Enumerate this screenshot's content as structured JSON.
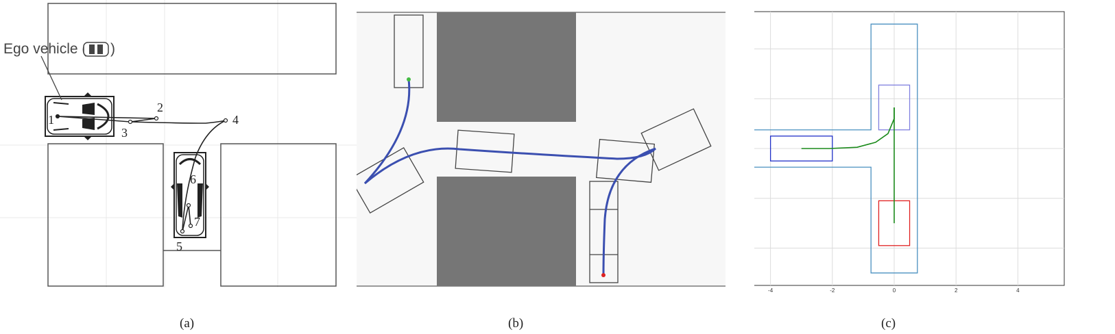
{
  "panel_a": {
    "caption": "(a)",
    "ego_label": "Ego vehicle (",
    "ego_label_close": ")",
    "waypoints": [
      "1",
      "2",
      "3",
      "4",
      "5",
      "6",
      "7"
    ]
  },
  "panel_b": {
    "caption": "(b)"
  },
  "panel_c": {
    "caption": "(c)",
    "chart_data": {
      "type": "scatter",
      "title": "",
      "xlabel": "",
      "ylabel": "",
      "xlim": [
        -5.3,
        5.5
      ],
      "ylim": [
        -5.5,
        5.5
      ],
      "x_ticks": [
        "-4",
        "-2",
        "0",
        "2",
        "4"
      ],
      "y_ticks": [
        "4",
        "2",
        "0",
        "-2",
        "-4"
      ],
      "grid": true,
      "colors": {
        "boundary": "#4a90c0",
        "start_box": "#2030c8",
        "goal_box": "#e02020",
        "mid_box": "#8080e0",
        "path": "#1a8a1a"
      },
      "boundary_polygon": [
        [
          -0.75,
          5
        ],
        [
          0.75,
          5
        ],
        [
          0.75,
          -5
        ],
        [
          -0.75,
          -5
        ],
        [
          -0.75,
          -0.75
        ],
        [
          -5,
          -0.75
        ],
        [
          -5,
          0.75
        ],
        [
          -0.75,
          0.75
        ]
      ],
      "start_box": {
        "x": [
          -4,
          -2
        ],
        "y": [
          -0.5,
          0.5
        ]
      },
      "mid_box": {
        "x": [
          -0.5,
          0.5
        ],
        "y": [
          0.75,
          2.55
        ]
      },
      "goal_box": {
        "x": [
          -0.5,
          0.5
        ],
        "y": [
          -3.9,
          -2.1
        ]
      },
      "path_segments": [
        {
          "x": [
            -3,
            -2.1,
            -1.2,
            -0.6,
            -0.2,
            0.0,
            0.0
          ],
          "y": [
            0,
            0,
            0.05,
            0.25,
            0.6,
            1.2,
            1.65
          ]
        },
        {
          "x": [
            0.0,
            0.0,
            0.0
          ],
          "y": [
            1.65,
            -0.5,
            -3.0
          ]
        }
      ]
    }
  }
}
